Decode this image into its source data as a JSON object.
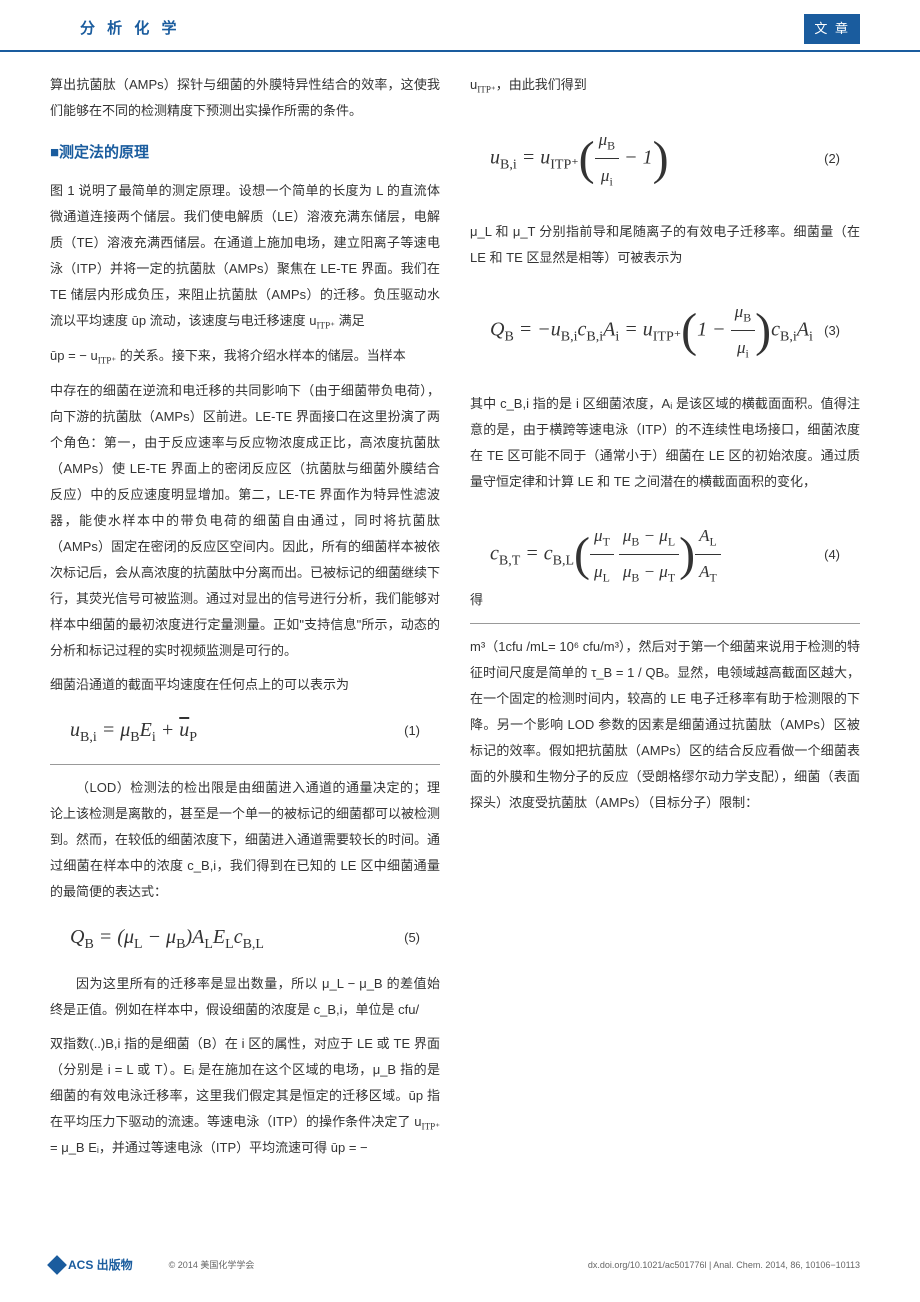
{
  "header": {
    "journal": "分 析 化 学",
    "category": "文 章"
  },
  "body": {
    "p1": "算出抗菌肽（AMPs）探针与细菌的外膜特异性结合的效率，这使我们能够在不同的检测精度下预测出实操作所需的条件。",
    "section_title": "■测定法的原理",
    "p2": "图 1 说明了最简单的测定原理。设想一个简单的长度为 L 的直流体微通道连接两个储层。我们使电解质（LE）溶液充满东储层，电解质（TE）溶液充满西储层。在通道上施加电场，建立阳离子等速电泳（ITP）并将一定的抗菌肽（AMPs）聚焦在 LE-TE 界面。我们在 TE 储层内形成负压，来阻止抗菌肽（AMPs）的迁移。负压驱动水流以平均速度 ūp 流动，该速度与电迁移速度 u",
    "p2b": " 满足",
    "p3a": "ūp = − u",
    "p3b": " 的关系。接下来，我将介绍水样本的储层。当样本",
    "p4": "中存在的细菌在逆流和电迁移的共同影响下（由于细菌带负电荷），向下游的抗菌肽（AMPs）区前进。LE-TE 界面接口在这里扮演了两个角色：第一，由于反应速率与反应物浓度成正比，高浓度抗菌肽（AMPs）使 LE-TE 界面上的密闭反应区（抗菌肽与细菌外膜结合反应）中的反应速度明显增加。第二，LE-TE 界面作为特异性滤波器，能使水样本中的带负电荷的细菌自由通过，同时将抗菌肽（AMPs）固定在密闭的反应区空间内。因此，所有的细菌样本被依次标记后，会从高浓度的抗菌肽中分离而出。已被标记的细菌继续下行，其荧光信号可被监测。通过对显出的信号进行分析，我们能够对样本中细菌的最初浓度进行定量测量。正如\"支持信息\"所示，动态的分析和标记过程的实时视频监测是可行的。",
    "p5": "细菌沿通道的截面平均速度在任何点上的可以表示为",
    "p6": "双指数(..)B,i 指的是细菌（B）在 i 区的属性，对应于 LE 或 TE 界面（分别是 i = L 或 T）。Eᵢ 是在施加在这个区域的电场，μ_B 指的是细菌的有效电泳迁移率，这里我们假定其是恒定的迁移区域。ūp 指在平均压力下驱动的流速。等速电泳（ITP）的操作条件决定了 u",
    "p6b": " = μ_B Eᵢ，并通过等速电泳（ITP）平均流速可得 ūp = −",
    "p6c": "u",
    "p6d": "，由此我们得到",
    "p7": "μ_L 和 μ_T 分别指前导和尾随离子的有效电子迁移率。细菌量（在 LE 和 TE 区显然是相等）可被表示为",
    "p8": "其中 c_B,i 指的是 i 区细菌浓度，Aᵢ 是该区域的横截面面积。值得注意的是，由于横跨等速电泳（ITP）的不连续性电场接口，细菌浓度在 TE 区可能不同于（通常小于）细菌在 LE 区的初始浓度。通过质量守恒定律和计算 LE 和 TE 之间潜在的横截面面积的变化，",
    "p8_suffix": "得",
    "p9a": "（LOD）检测法的检出限是由细菌进入通道的通量决定的；理论上该检测是离散的，甚至是一个单一的被标记的细菌都可以被检测到。然而，在较低的细菌浓度下，细菌进入通道需要较长的时间。通过细菌在样本中的浓度 c_B,i，我们得到在已知的 LE 区中细菌通量的最简便的表达式：",
    "p9b": "因为这里所有的迁移率是显出数量，所以 μ_L − μ_B 的差值始终是正值。例如在样本中，假设细菌的浓度是 c_B,i，单位是 cfu/",
    "p10": "m³（1cfu /mL= 10⁶ cfu/m³），然后对于第一个细菌来说用于检测的特征时间尺度是简单的 τ_B = 1 / QB。显然，电领域越高截面区越大，在一个固定的检测时间内，较高的 LE 电子迁移率有助于检测限的下降。另一个影响 LOD 参数的因素是细菌通过抗菌肽（AMPs）区被标记的效率。假如把抗菌肽（AMPs）区的结合反应看做一个细菌表面的外膜和生物分子的反应（受朗格缪尔动力学支配），细菌（表面探头）浓度受抗菌肽（AMPs）（目标分子）限制：",
    "eq1_num": "(1)",
    "eq2_num": "(2)",
    "eq3_num": "(3)",
    "eq4_num": "(4)",
    "eq5_num": "(5)"
  },
  "footer": {
    "publisher": "ACS 出版物",
    "copyright": "© 2014 美国化学学会",
    "citation": "dx.doi.org/10.1021/ac501776l | Anal. Chem. 2014, 86, 10106−10113"
  },
  "colors": {
    "primary": "#1a5c9e",
    "text": "#333333",
    "bg": "#ffffff"
  }
}
